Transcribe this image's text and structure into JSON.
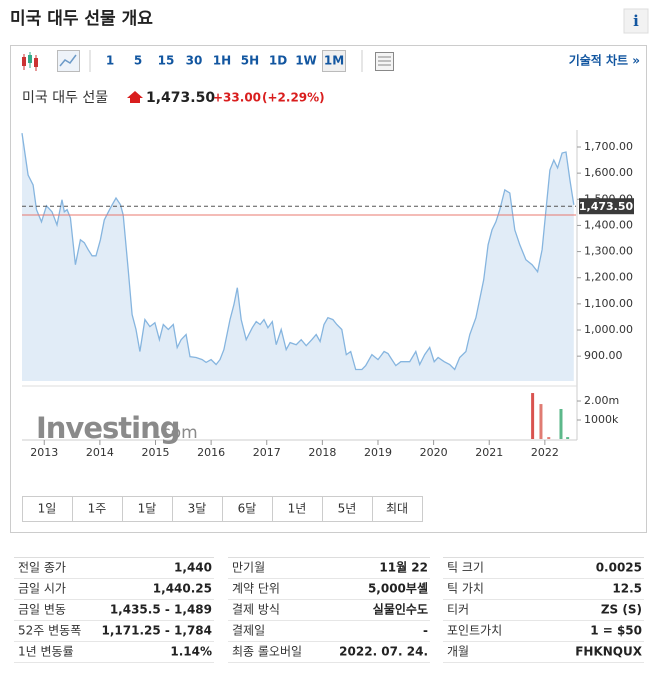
{
  "page": {
    "title": "미국 대두 선물 개요",
    "info_icon": "i"
  },
  "toolbar": {
    "intervals": [
      "1",
      "5",
      "15",
      "30",
      "1H",
      "5H",
      "1D",
      "1W",
      "1M"
    ],
    "selected": "1M",
    "tech_chart": "기술적 차트 »"
  },
  "quote": {
    "name": "미국 대두 선물",
    "price": "1,473.50",
    "change": "+33.00",
    "change_pct": "(+2.29%)"
  },
  "chart_data": [
    {
      "type": "area",
      "x": [
        2012.6,
        2012.71,
        2012.8,
        2012.86,
        2012.95,
        2013.04,
        2013.14,
        2013.23,
        2013.32,
        2013.36,
        2013.41,
        2013.47,
        2013.56,
        2013.65,
        2013.72,
        2013.79,
        2013.86,
        2013.93,
        2014.01,
        2014.08,
        2014.19,
        2014.29,
        2014.37,
        2014.42,
        2014.51,
        2014.58,
        2014.65,
        2014.72,
        2014.81,
        2014.9,
        2014.99,
        2015.07,
        2015.14,
        2015.23,
        2015.32,
        2015.39,
        2015.46,
        2015.55,
        2015.62,
        2015.73,
        2015.84,
        2015.91,
        2016.0,
        2016.09,
        2016.16,
        2016.23,
        2016.34,
        2016.41,
        2016.47,
        2016.54,
        2016.63,
        2016.74,
        2016.81,
        2016.88,
        2016.95,
        2017.02,
        2017.1,
        2017.17,
        2017.26,
        2017.35,
        2017.42,
        2017.53,
        2017.62,
        2017.71,
        2017.81,
        2017.89,
        2017.96,
        2018.03,
        2018.1,
        2018.19,
        2018.26,
        2018.35,
        2018.43,
        2018.51,
        2018.6,
        2018.71,
        2018.78,
        2018.89,
        2019.0,
        2019.11,
        2019.18,
        2019.25,
        2019.32,
        2019.41,
        2019.5,
        2019.57,
        2019.68,
        2019.75,
        2019.84,
        2019.93,
        2020.01,
        2020.08,
        2020.19,
        2020.29,
        2020.38,
        2020.47,
        2020.58,
        2020.65,
        2020.76,
        2020.9,
        2020.98,
        2021.05,
        2021.12,
        2021.19,
        2021.28,
        2021.37,
        2021.46,
        2021.55,
        2021.66,
        2021.77,
        2021.87,
        2021.95,
        2022.02,
        2022.09,
        2022.16,
        2022.23,
        2022.31,
        2022.38,
        2022.45,
        2022.52
      ],
      "values": [
        1753,
        1593,
        1555,
        1460,
        1414,
        1475,
        1452,
        1402,
        1498,
        1452,
        1460,
        1429,
        1250,
        1345,
        1334,
        1307,
        1284,
        1284,
        1345,
        1421,
        1467,
        1505,
        1479,
        1440,
        1231,
        1059,
        1002,
        918,
        1040,
        1013,
        1028,
        963,
        1021,
        1002,
        1021,
        933,
        963,
        983,
        898,
        895,
        887,
        876,
        887,
        868,
        887,
        925,
        1040,
        1097,
        1162,
        1040,
        963,
        1009,
        1032,
        1021,
        1040,
        1009,
        1032,
        944,
        1002,
        925,
        952,
        944,
        963,
        940,
        963,
        983,
        956,
        1021,
        1047,
        1040,
        1021,
        1002,
        906,
        918,
        849,
        849,
        864,
        906,
        887,
        918,
        910,
        887,
        864,
        879,
        879,
        879,
        918,
        868,
        906,
        933,
        879,
        895,
        879,
        868,
        849,
        895,
        918,
        983,
        1047,
        1192,
        1326,
        1383,
        1414,
        1460,
        1536,
        1524,
        1383,
        1326,
        1269,
        1250,
        1223,
        1307,
        1460,
        1612,
        1650,
        1620,
        1677,
        1681,
        1574,
        1479
      ],
      "color": "#86b5df",
      "fill_color": "#e1ecf7",
      "xlim": [
        2012.6,
        2022.56
      ],
      "xticks": [
        2013,
        2014,
        2015,
        2016,
        2017,
        2018,
        2019,
        2020,
        2021,
        2022
      ],
      "ylim": [
        805,
        1765
      ],
      "yticks": [
        {
          "value": 900,
          "label": "900.00"
        },
        {
          "value": 1000,
          "label": "1,000.00"
        },
        {
          "value": 1100,
          "label": "1,100.00"
        },
        {
          "value": 1200,
          "label": "1,200.00"
        },
        {
          "value": 1300,
          "label": "1,300.00"
        },
        {
          "value": 1400,
          "label": "1,400.00"
        },
        {
          "value": 1500,
          "label": "1,500.00"
        },
        {
          "value": 1600,
          "label": "1,600.00"
        },
        {
          "value": 1700,
          "label": "1,700.00"
        }
      ],
      "last_value": 1473.5,
      "last_label": "1,473.50",
      "prev_close": 1440,
      "prev_close_color": "#e8796f",
      "grid": false
    },
    {
      "type": "bar",
      "x": [
        2021.78,
        2021.93,
        2022.07,
        2022.29,
        2022.41
      ],
      "values": [
        2420000,
        1840000,
        100000,
        1580000,
        100000
      ],
      "colors": [
        "#d9534f",
        "#e07b72",
        "#e07b72",
        "#5cb88a",
        "#5cb88a"
      ],
      "xlim": [
        2012.6,
        2022.56
      ],
      "ylim": [
        0,
        2580000
      ],
      "yticks": [
        {
          "value": 1000000,
          "label": "1000k"
        },
        {
          "value": 2000000,
          "label": "2.00m"
        }
      ]
    }
  ],
  "watermark": {
    "brand": "Investing",
    "suffix": ".com"
  },
  "ranges": [
    "1일",
    "1주",
    "1달",
    "3달",
    "6달",
    "1년",
    "5년",
    "최대"
  ],
  "table": {
    "columns": [
      [
        [
          "전일 종가",
          "1,440"
        ],
        [
          "금일 시가",
          "1,440.25"
        ],
        [
          "금일 변동",
          "1,435.5 - 1,489"
        ],
        [
          "52주 변동폭",
          "1,171.25 - 1,784"
        ],
        [
          "1년 변동률",
          "1.14%"
        ]
      ],
      [
        [
          "만기월",
          "11월 22"
        ],
        [
          "계약 단위",
          "5,000부셸"
        ],
        [
          "결제 방식",
          "실물인수도"
        ],
        [
          "결제일",
          "-"
        ],
        [
          "최종 롤오버일",
          "2022. 07. 24."
        ]
      ],
      [
        [
          "틱 크기",
          "0.0025"
        ],
        [
          "틱 가치",
          "12.5"
        ],
        [
          "티커",
          "ZS (S)"
        ],
        [
          "포인트가치",
          "1 = $50"
        ],
        [
          "개월",
          "FHKNQUX"
        ]
      ]
    ]
  }
}
